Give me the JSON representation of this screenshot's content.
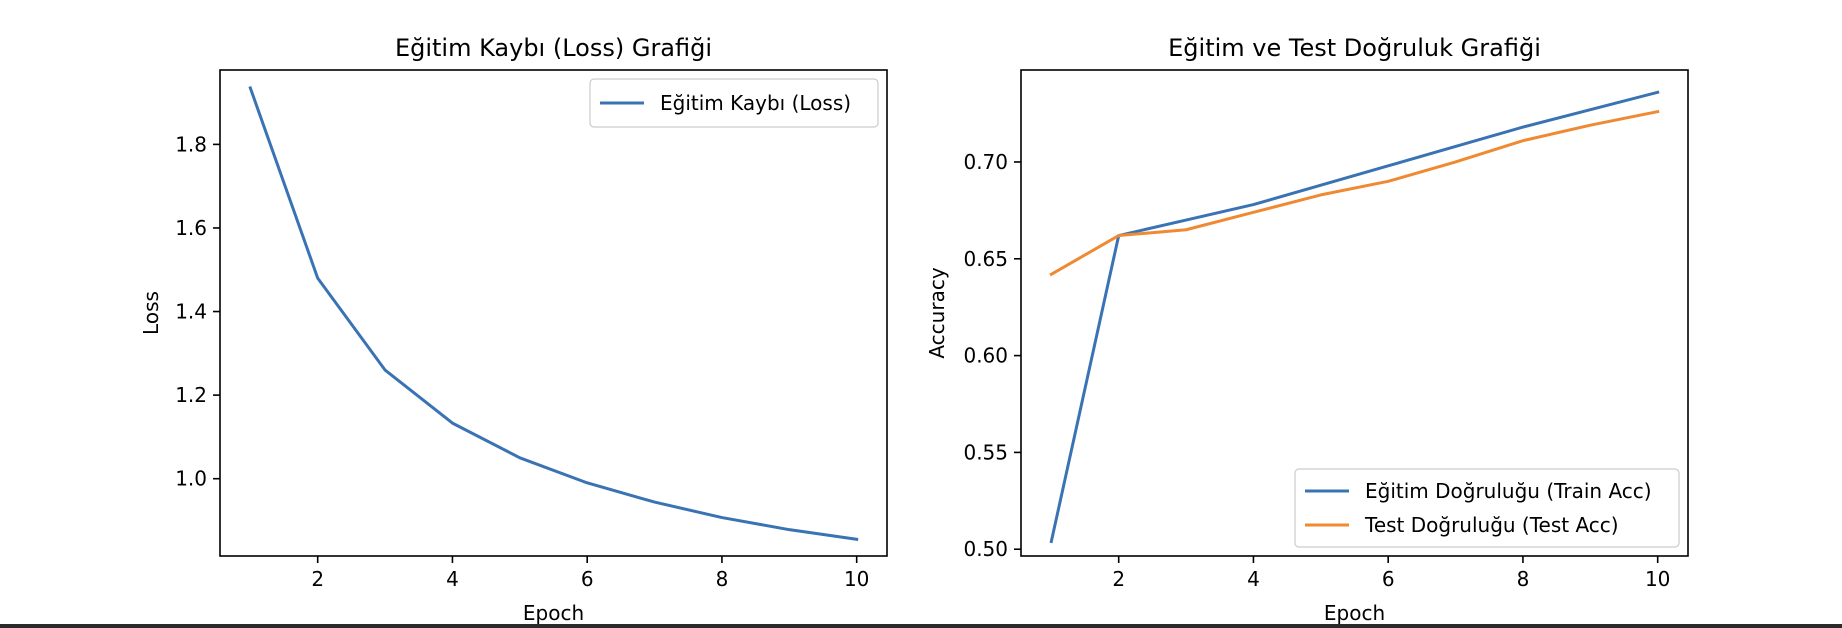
{
  "chart_data": [
    {
      "type": "line",
      "title": "Eğitim Kaybı (Loss) Grafiği",
      "xlabel": "Epoch",
      "ylabel": "Loss",
      "x": [
        1,
        2,
        3,
        4,
        5,
        6,
        7,
        8,
        9,
        10
      ],
      "xlim": [
        0.55,
        10.45
      ],
      "ylim": [
        0.815,
        1.978
      ],
      "xticks": [
        2,
        4,
        6,
        8,
        10
      ],
      "xtick_labels": [
        "2",
        "4",
        "6",
        "8",
        "10"
      ],
      "yticks": [
        1.0,
        1.2,
        1.4,
        1.6,
        1.8
      ],
      "ytick_labels": [
        "1.0",
        "1.2",
        "1.4",
        "1.6",
        "1.8"
      ],
      "grid": false,
      "legend": "upper-right",
      "series": [
        {
          "name": "Eğitim Kaybı (Loss)",
          "color": "#3a73b3",
          "values": [
            1.935,
            1.48,
            1.26,
            1.133,
            1.05,
            0.99,
            0.944,
            0.907,
            0.878,
            0.855
          ]
        }
      ]
    },
    {
      "type": "line",
      "title": "Eğitim ve Test Doğruluk Grafiği",
      "xlabel": "Epoch",
      "ylabel": "Accuracy",
      "x": [
        1,
        2,
        3,
        4,
        5,
        6,
        7,
        8,
        9,
        10
      ],
      "xlim": [
        0.55,
        10.45
      ],
      "ylim": [
        0.4965,
        0.7475
      ],
      "xticks": [
        2,
        4,
        6,
        8,
        10
      ],
      "xtick_labels": [
        "2",
        "4",
        "6",
        "8",
        "10"
      ],
      "yticks": [
        0.5,
        0.55,
        0.6,
        0.65,
        0.7
      ],
      "ytick_labels": [
        "0.50",
        "0.55",
        "0.60",
        "0.65",
        "0.70"
      ],
      "grid": false,
      "legend": "lower-right",
      "series": [
        {
          "name": "Eğitim Doğruluğu (Train Acc)",
          "color": "#3a73b3",
          "values": [
            0.504,
            0.662,
            0.67,
            0.678,
            0.688,
            0.698,
            0.708,
            0.718,
            0.727,
            0.736
          ]
        },
        {
          "name": "Test Doğruluğu (Test Acc)",
          "color": "#ef8a32",
          "values": [
            0.642,
            0.662,
            0.665,
            0.674,
            0.683,
            0.69,
            0.7,
            0.711,
            0.719,
            0.726
          ]
        }
      ]
    }
  ]
}
